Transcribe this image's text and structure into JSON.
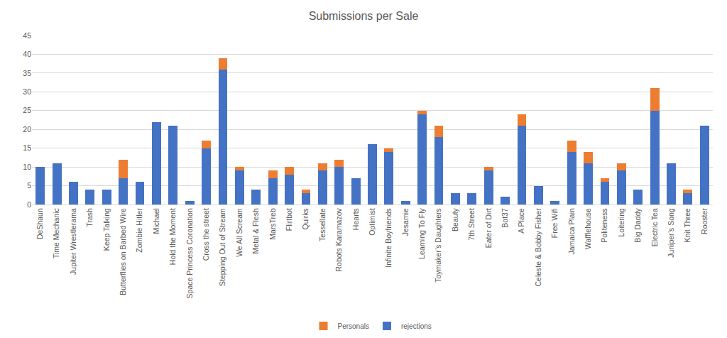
{
  "chart_data": {
    "type": "bar",
    "title": "Submissions per Sale",
    "categories": [
      "DeShaun",
      "Time Mechanic",
      "Jupiter Wrestlerama",
      "Trash",
      "Keep Talking",
      "Butterflies on Barbed Wire",
      "Zombie Hitler",
      "Michael",
      "Hold the Moment",
      "Space Princess Coronation",
      "Cross the street",
      "Stepping Out of Stream",
      "We All Scream",
      "Metal & Flesh",
      "MarsTreb",
      "Flirtbot",
      "Quirks",
      "Tessellate",
      "Robots Karamazov",
      "Hearts",
      "Optimist",
      "Infinite Boyfriends",
      "Jesamie",
      "Learning To Fly",
      "Toymaker’s Daughters",
      "Beauty",
      "7th Street",
      "Eater of Dirt",
      "Bot37",
      "A Place",
      "Celeste & Bobby Fisher",
      "Free Wifi",
      "Jamaica Plain",
      "Wafflehouse",
      "Politeness",
      "Loitering",
      "Big Daddy",
      "Electric Tea",
      "Juniper’s Song",
      "Knit Three",
      "Rooster"
    ],
    "series": [
      {
        "name": "rejections",
        "color": "#4472c4",
        "values": [
          10,
          11,
          6,
          4,
          4,
          7,
          6,
          22,
          21,
          1,
          15,
          36,
          9,
          4,
          7,
          8,
          3,
          9,
          10,
          7,
          16,
          14,
          1,
          24,
          18,
          3,
          3,
          9,
          2,
          21,
          5,
          1,
          14,
          11,
          6,
          9,
          4,
          25,
          11,
          3,
          21
        ]
      },
      {
        "name": "Personals",
        "color": "#ed7d31",
        "values": [
          0,
          0,
          0,
          0,
          0,
          5,
          0,
          0,
          0,
          0,
          2,
          3,
          1,
          0,
          2,
          2,
          1,
          2,
          2,
          0,
          0,
          1,
          0,
          1,
          3,
          0,
          0,
          1,
          0,
          3,
          0,
          0,
          3,
          3,
          1,
          2,
          0,
          6,
          0,
          1,
          0
        ]
      }
    ],
    "stacked": true,
    "ylim": [
      0,
      45
    ],
    "yticks": [
      0,
      5,
      10,
      15,
      20,
      25,
      30,
      35,
      40,
      45
    ],
    "grid": true,
    "legend": "bottom"
  }
}
